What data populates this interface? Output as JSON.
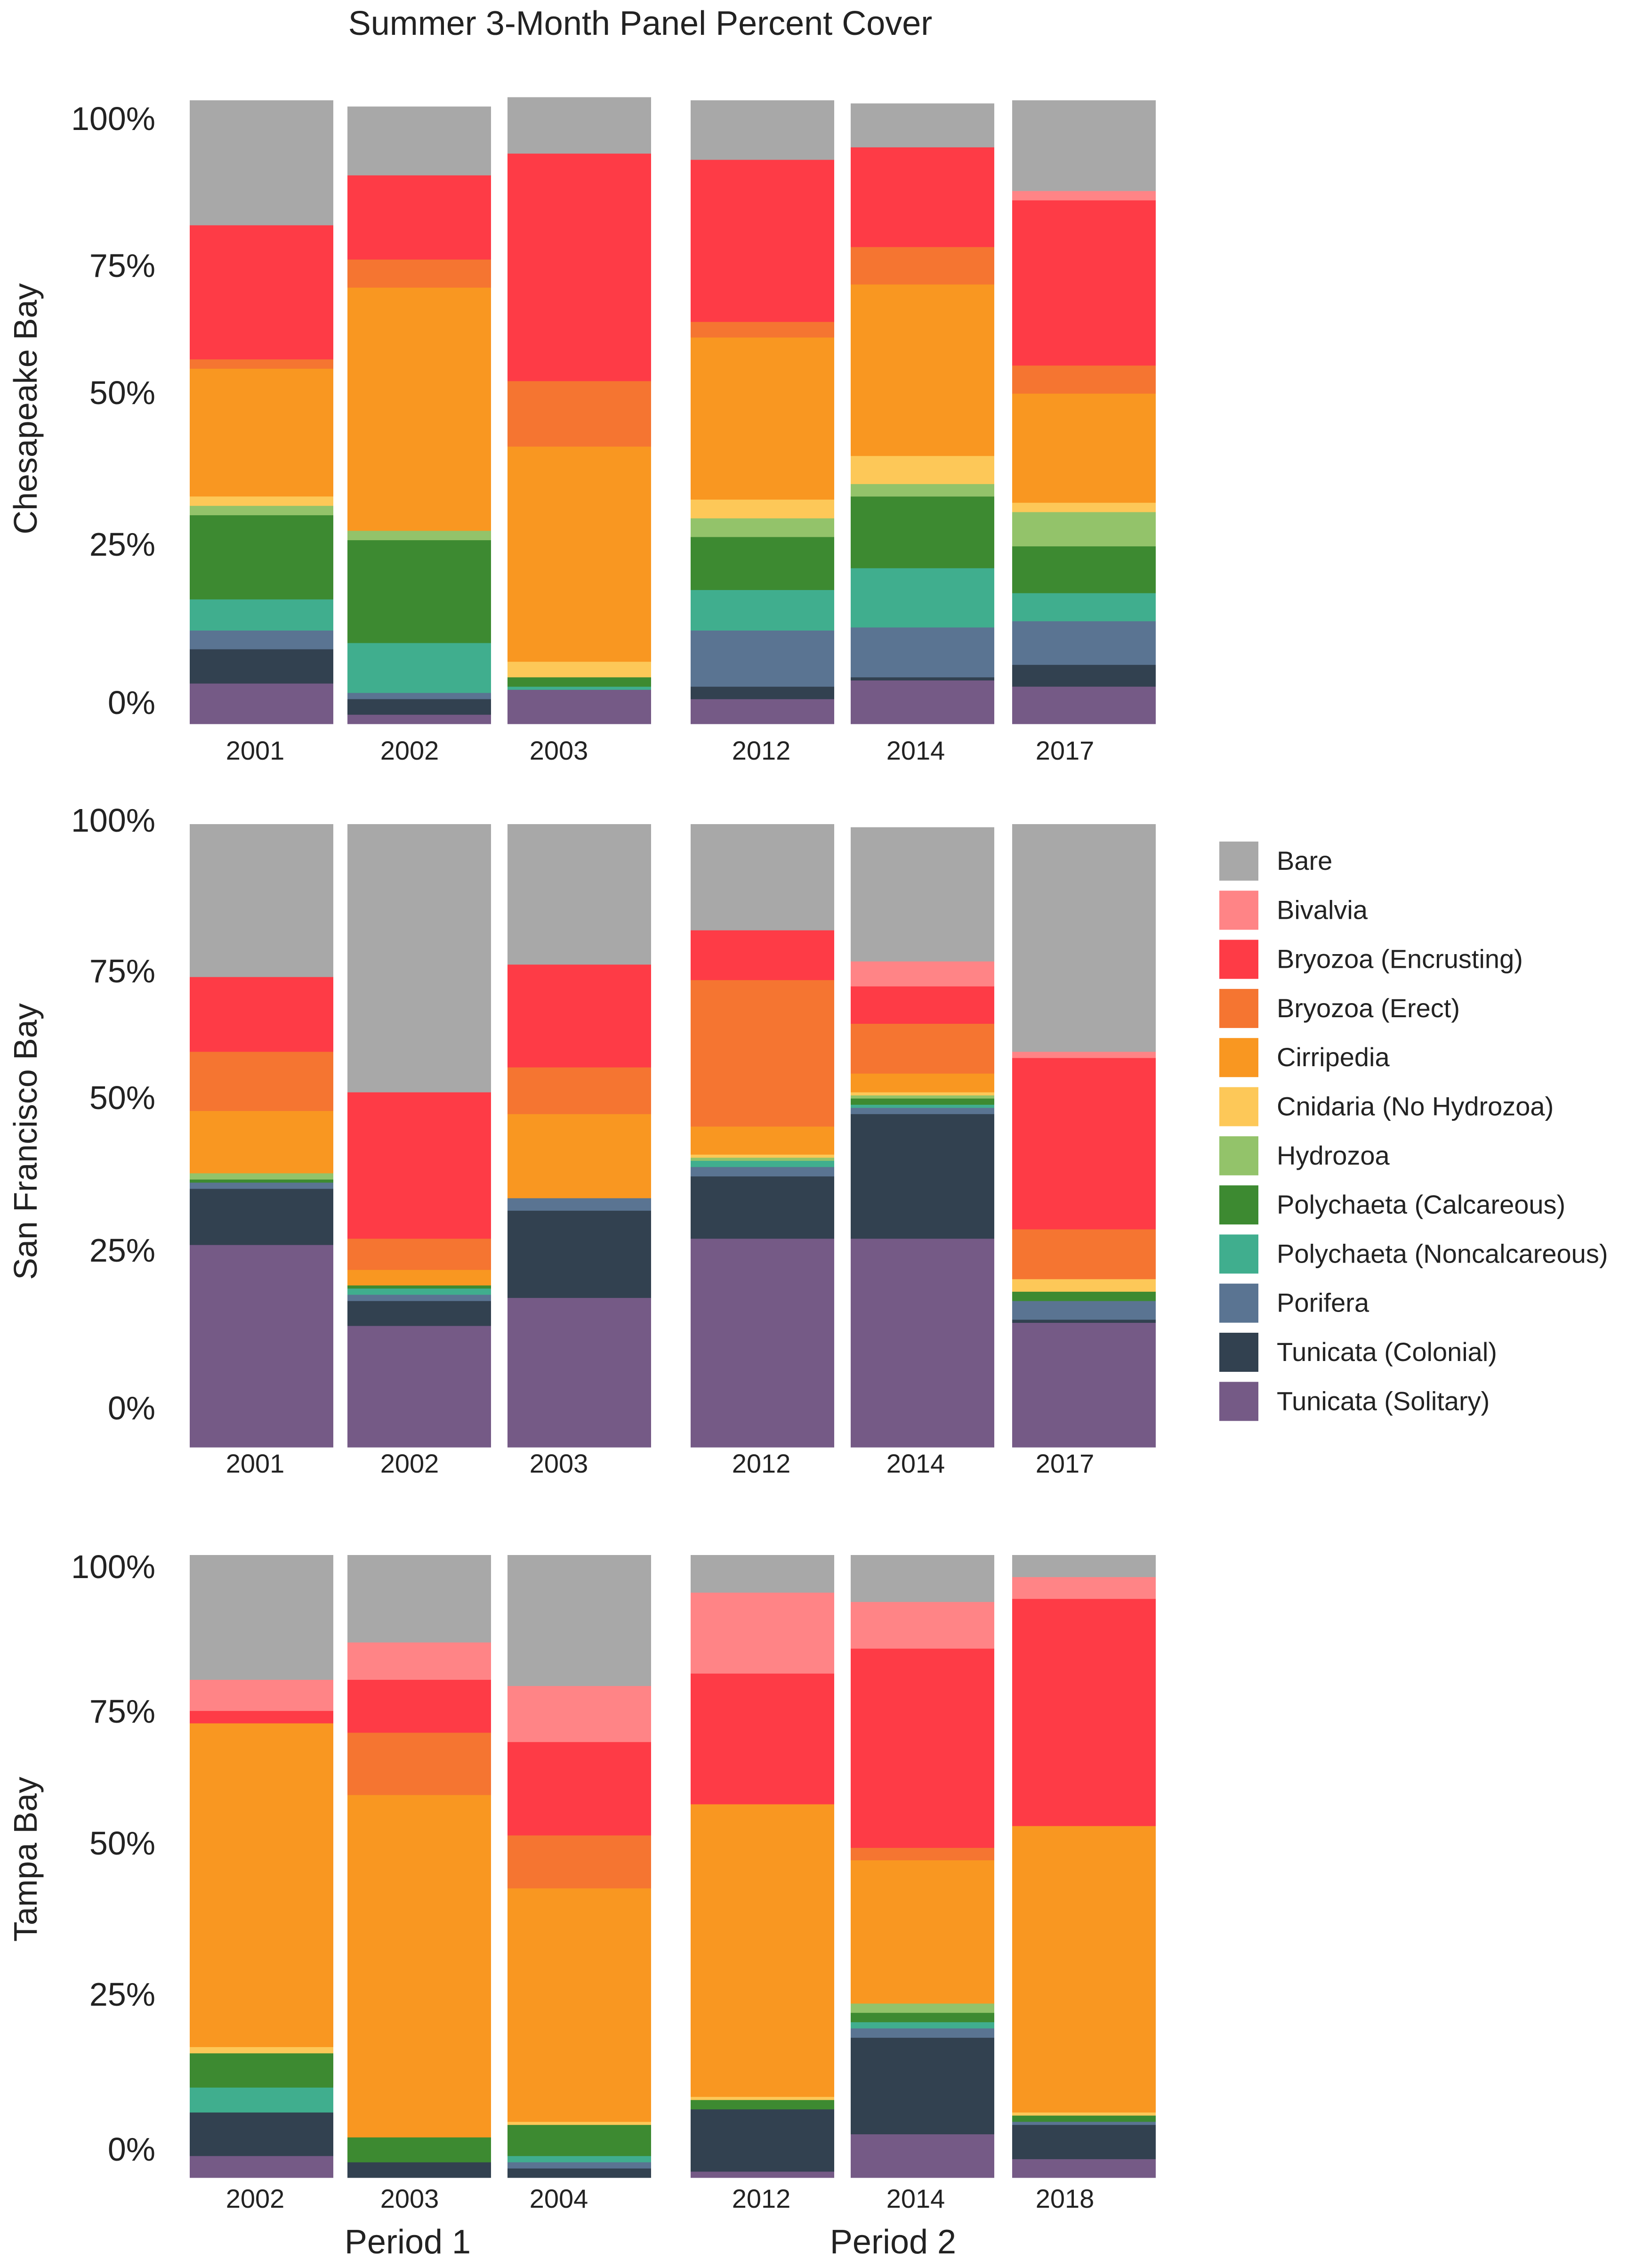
{
  "chart_data": {
    "type": "bar",
    "stacked": true,
    "title": "Summer 3-Month Panel Percent Cover",
    "y_ticks": [
      "0%",
      "25%",
      "50%",
      "75%",
      "100%"
    ],
    "ylim": [
      0,
      100
    ],
    "periods": [
      "Period 1",
      "Period 2"
    ],
    "legend_position": "right",
    "species": [
      {
        "name": "Bare",
        "color": "#a8a8a8"
      },
      {
        "name": "Bivalvia",
        "color": "#ff8486"
      },
      {
        "name": "Bryozoa (Encrusting)",
        "color": "#fe3b46"
      },
      {
        "name": "Bryozoa (Erect)",
        "color": "#f57531"
      },
      {
        "name": "Cirripedia",
        "color": "#f99721"
      },
      {
        "name": "Cnidaria (No Hydrozoa)",
        "color": "#fdc858"
      },
      {
        "name": "Hydrozoa",
        "color": "#93c36a"
      },
      {
        "name": "Polychaeta (Calcareous)",
        "color": "#3d8a31"
      },
      {
        "name": "Polychaeta (Noncalcareous)",
        "color": "#40ae8e"
      },
      {
        "name": "Porifera",
        "color": "#5a7492"
      },
      {
        "name": "Tunicata (Colonial)",
        "color": "#324150"
      },
      {
        "name": "Tunicata (Solitary)",
        "color": "#755a86"
      }
    ],
    "stack_order_note": "values listed bottom-to-top: Tunicata (Solitary), Tunicata (Colonial), Porifera, Polychaeta (Noncalcareous), Polychaeta (Calcareous), Hydrozoa, Cnidaria (No Hydrozoa), Cirripedia, Bryozoa (Erect), Bryozoa (Encrusting), Bivalvia, Bare",
    "panels": [
      {
        "ylabel": "Chesapeake Bay",
        "years": [
          "2001",
          "2002",
          "2003",
          "2012",
          "2014",
          "2017"
        ],
        "values": [
          [
            6.5,
            5.5,
            3,
            5,
            13.5,
            1.5,
            1.5,
            20.5,
            1.5,
            21.5,
            0,
            20
          ],
          [
            1.5,
            2.5,
            1,
            8,
            16.5,
            1.5,
            0,
            39,
            4.5,
            13.5,
            0,
            11
          ],
          [
            5.5,
            0,
            0,
            0.5,
            1.5,
            0,
            2.5,
            34.5,
            10.5,
            36.5,
            0,
            9
          ],
          [
            4,
            2,
            9,
            6.5,
            8.5,
            3,
            3,
            26,
            2.5,
            26,
            0,
            9.5
          ],
          [
            7,
            0.5,
            8,
            9.5,
            11.5,
            2,
            4.5,
            27.5,
            6,
            16,
            0,
            7
          ],
          [
            6,
            3.5,
            7,
            4.5,
            7.5,
            5.5,
            1.5,
            17.5,
            4.5,
            26.5,
            1.5,
            14.5
          ]
        ]
      },
      {
        "ylabel": "San Francisco Bay",
        "years": [
          "2001",
          "2002",
          "2003",
          "2012",
          "2014",
          "2017"
        ],
        "values": [
          [
            32.5,
            9,
            1,
            0,
            0.5,
            1,
            0,
            10,
            9.5,
            12,
            0,
            24.5
          ],
          [
            19.5,
            4,
            1,
            1,
            0.5,
            0,
            0,
            2.5,
            5,
            23.5,
            0,
            43
          ],
          [
            24,
            14,
            2,
            0,
            0,
            0,
            0,
            13.5,
            7.5,
            16.5,
            0,
            22.5
          ],
          [
            33.5,
            10,
            1.5,
            1,
            0,
            0.5,
            0.5,
            4.5,
            23.5,
            8,
            0,
            17
          ],
          [
            33.5,
            20,
            1,
            0.5,
            1,
            0.5,
            0.5,
            3,
            8,
            6,
            4,
            21.5
          ],
          [
            20,
            0.5,
            3,
            0,
            1.5,
            0,
            2,
            0,
            8,
            27.5,
            1,
            36.5
          ]
        ]
      },
      {
        "ylabel": "Tampa Bay",
        "years": [
          "2002",
          "2003",
          "2004",
          "2012",
          "2014",
          "2018"
        ],
        "values": [
          [
            3.5,
            7,
            0,
            4,
            5.5,
            0,
            1,
            52,
            0,
            2,
            5,
            20
          ],
          [
            0,
            2.5,
            0,
            0,
            4,
            0,
            0,
            55,
            10,
            8.5,
            6,
            14
          ],
          [
            0,
            1.5,
            1,
            1,
            5,
            0,
            0.5,
            37.5,
            8.5,
            15,
            9,
            21
          ],
          [
            1,
            10,
            0,
            0,
            1.5,
            0,
            0.5,
            47,
            0,
            21,
            13,
            6
          ],
          [
            7,
            15.5,
            1.5,
            1,
            1.5,
            1.5,
            0,
            23,
            2,
            32,
            7.5,
            7.5
          ],
          [
            3,
            5.5,
            0.5,
            0,
            1,
            0,
            0.5,
            46,
            0,
            36.5,
            3.5,
            3.5
          ]
        ]
      }
    ]
  }
}
